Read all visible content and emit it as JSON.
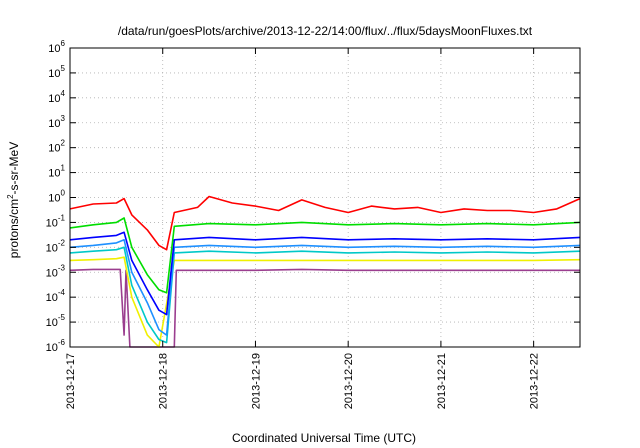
{
  "chart_data": {
    "type": "line",
    "title": "/data/run/goesPlots/archive/2013-12-22/14:00/flux/../flux/5daysMoonFluxes.txt",
    "xlabel": "Coordinated Universal Time (UTC)",
    "ylabel": "protons/cm²-s-sr-MeV",
    "ylabel_parts": {
      "before": "protons/cm",
      "sup": "2",
      "after": "-s-sr-MeV"
    },
    "y_scale": "log",
    "ylim": [
      1e-06,
      1000000.0
    ],
    "xlim": [
      "2013-12-17 00:00",
      "2013-12-22 12:00"
    ],
    "grid": true,
    "y_ticks": [
      {
        "value": 1e-06,
        "base": "10",
        "exp": "-6"
      },
      {
        "value": 1e-05,
        "base": "10",
        "exp": "-5"
      },
      {
        "value": 0.0001,
        "base": "10",
        "exp": "-4"
      },
      {
        "value": 0.001,
        "base": "10",
        "exp": "-3"
      },
      {
        "value": 0.01,
        "base": "10",
        "exp": "-2"
      },
      {
        "value": 0.1,
        "base": "10",
        "exp": "-1"
      },
      {
        "value": 1,
        "base": "10",
        "exp": "0"
      },
      {
        "value": 10.0,
        "base": "10",
        "exp": "1"
      },
      {
        "value": 100.0,
        "base": "10",
        "exp": "2"
      },
      {
        "value": 1000.0,
        "base": "10",
        "exp": "3"
      },
      {
        "value": 10000.0,
        "base": "10",
        "exp": "4"
      },
      {
        "value": 100000.0,
        "base": "10",
        "exp": "5"
      },
      {
        "value": 1000000.0,
        "base": "10",
        "exp": "6"
      }
    ],
    "x_ticks": [
      "2013-12-17",
      "2013-12-18",
      "2013-12-19",
      "2013-12-20",
      "2013-12-21",
      "2013-12-22"
    ],
    "series": [
      {
        "color": "#ff0000",
        "points": [
          [
            "2013-12-17 00:00",
            0.35
          ],
          [
            "2013-12-17 06:00",
            0.55
          ],
          [
            "2013-12-17 12:00",
            0.6
          ],
          [
            "2013-12-17 14:00",
            0.9
          ],
          [
            "2013-12-17 16:00",
            0.2
          ],
          [
            "2013-12-17 20:00",
            0.05
          ],
          [
            "2013-12-17 23:00",
            0.012
          ],
          [
            "2013-12-18 01:00",
            0.008
          ],
          [
            "2013-12-18 03:00",
            0.25
          ],
          [
            "2013-12-18 09:00",
            0.4
          ],
          [
            "2013-12-18 12:00",
            1.1
          ],
          [
            "2013-12-18 18:00",
            0.6
          ],
          [
            "2013-12-19 00:00",
            0.45
          ],
          [
            "2013-12-19 06:00",
            0.3
          ],
          [
            "2013-12-19 12:00",
            0.8
          ],
          [
            "2013-12-19 18:00",
            0.4
          ],
          [
            "2013-12-20 00:00",
            0.25
          ],
          [
            "2013-12-20 06:00",
            0.45
          ],
          [
            "2013-12-20 12:00",
            0.35
          ],
          [
            "2013-12-20 18:00",
            0.4
          ],
          [
            "2013-12-21 00:00",
            0.25
          ],
          [
            "2013-12-21 06:00",
            0.35
          ],
          [
            "2013-12-21 12:00",
            0.3
          ],
          [
            "2013-12-21 18:00",
            0.3
          ],
          [
            "2013-12-22 00:00",
            0.25
          ],
          [
            "2013-12-22 06:00",
            0.35
          ],
          [
            "2013-12-22 12:00",
            0.9
          ]
        ]
      },
      {
        "color": "#00dd00",
        "points": [
          [
            "2013-12-17 00:00",
            0.06
          ],
          [
            "2013-12-17 06:00",
            0.08
          ],
          [
            "2013-12-17 12:00",
            0.1
          ],
          [
            "2013-12-17 14:00",
            0.15
          ],
          [
            "2013-12-17 16:00",
            0.01
          ],
          [
            "2013-12-17 20:00",
            0.0008
          ],
          [
            "2013-12-17 23:00",
            0.0002
          ],
          [
            "2013-12-18 01:00",
            0.00015
          ],
          [
            "2013-12-18 03:00",
            0.07
          ],
          [
            "2013-12-18 12:00",
            0.09
          ],
          [
            "2013-12-19 00:00",
            0.08
          ],
          [
            "2013-12-19 12:00",
            0.1
          ],
          [
            "2013-12-20 00:00",
            0.08
          ],
          [
            "2013-12-20 12:00",
            0.09
          ],
          [
            "2013-12-21 00:00",
            0.08
          ],
          [
            "2013-12-21 12:00",
            0.09
          ],
          [
            "2013-12-22 00:00",
            0.08
          ],
          [
            "2013-12-22 12:00",
            0.1
          ]
        ]
      },
      {
        "color": "#0000ff",
        "points": [
          [
            "2013-12-17 00:00",
            0.02
          ],
          [
            "2013-12-17 06:00",
            0.025
          ],
          [
            "2013-12-17 12:00",
            0.03
          ],
          [
            "2013-12-17 14:00",
            0.04
          ],
          [
            "2013-12-17 16:00",
            0.003
          ],
          [
            "2013-12-17 20:00",
            0.0002
          ],
          [
            "2013-12-17 23:00",
            3e-05
          ],
          [
            "2013-12-18 01:00",
            2e-05
          ],
          [
            "2013-12-18 03:00",
            0.02
          ],
          [
            "2013-12-18 12:00",
            0.025
          ],
          [
            "2013-12-19 00:00",
            0.02
          ],
          [
            "2013-12-19 12:00",
            0.025
          ],
          [
            "2013-12-20 00:00",
            0.02
          ],
          [
            "2013-12-20 12:00",
            0.022
          ],
          [
            "2013-12-21 00:00",
            0.02
          ],
          [
            "2013-12-21 12:00",
            0.022
          ],
          [
            "2013-12-22 00:00",
            0.02
          ],
          [
            "2013-12-22 12:00",
            0.025
          ]
        ]
      },
      {
        "color": "#1e90ff",
        "points": [
          [
            "2013-12-17 00:00",
            0.01
          ],
          [
            "2013-12-17 06:00",
            0.012
          ],
          [
            "2013-12-17 12:00",
            0.015
          ],
          [
            "2013-12-17 14:00",
            0.02
          ],
          [
            "2013-12-17 16:00",
            0.001
          ],
          [
            "2013-12-17 20:00",
            6e-05
          ],
          [
            "2013-12-17 23:00",
            5e-06
          ],
          [
            "2013-12-18 01:00",
            3e-06
          ],
          [
            "2013-12-18 03:00",
            0.01
          ],
          [
            "2013-12-18 12:00",
            0.012
          ],
          [
            "2013-12-19 00:00",
            0.01
          ],
          [
            "2013-12-19 12:00",
            0.012
          ],
          [
            "2013-12-20 00:00",
            0.01
          ],
          [
            "2013-12-20 12:00",
            0.011
          ],
          [
            "2013-12-21 00:00",
            0.01
          ],
          [
            "2013-12-21 12:00",
            0.011
          ],
          [
            "2013-12-22 00:00",
            0.01
          ],
          [
            "2013-12-22 12:00",
            0.012
          ]
        ]
      },
      {
        "color": "#00c8c8",
        "points": [
          [
            "2013-12-17 00:00",
            0.006
          ],
          [
            "2013-12-17 06:00",
            0.007
          ],
          [
            "2013-12-17 12:00",
            0.008
          ],
          [
            "2013-12-17 14:00",
            0.01
          ],
          [
            "2013-12-17 16:00",
            0.0003
          ],
          [
            "2013-12-17 20:00",
            1e-05
          ],
          [
            "2013-12-17 23:00",
            2e-06
          ],
          [
            "2013-12-18 01:00",
            1.5e-06
          ],
          [
            "2013-12-18 03:00",
            0.006
          ],
          [
            "2013-12-18 12:00",
            0.007
          ],
          [
            "2013-12-19 00:00",
            0.006
          ],
          [
            "2013-12-19 12:00",
            0.007
          ],
          [
            "2013-12-20 00:00",
            0.006
          ],
          [
            "2013-12-20 12:00",
            0.0065
          ],
          [
            "2013-12-21 00:00",
            0.006
          ],
          [
            "2013-12-21 12:00",
            0.0065
          ],
          [
            "2013-12-22 00:00",
            0.006
          ],
          [
            "2013-12-22 12:00",
            0.007
          ]
        ]
      },
      {
        "color": "#f0f000",
        "points": [
          [
            "2013-12-17 00:00",
            0.003
          ],
          [
            "2013-12-17 06:00",
            0.0032
          ],
          [
            "2013-12-17 12:00",
            0.0035
          ],
          [
            "2013-12-17 14:00",
            0.004
          ],
          [
            "2013-12-17 16:00",
            0.0001
          ],
          [
            "2013-12-17 20:00",
            3e-06
          ],
          [
            "2013-12-17 23:00",
            1e-06
          ],
          [
            "2013-12-18 03:00",
            0.003
          ],
          [
            "2013-12-18 12:00",
            0.003
          ],
          [
            "2013-12-19 00:00",
            0.003
          ],
          [
            "2013-12-19 12:00",
            0.003
          ],
          [
            "2013-12-20 00:00",
            0.003
          ],
          [
            "2013-12-20 12:00",
            0.003
          ],
          [
            "2013-12-21 00:00",
            0.003
          ],
          [
            "2013-12-21 12:00",
            0.003
          ],
          [
            "2013-12-22 00:00",
            0.003
          ],
          [
            "2013-12-22 12:00",
            0.0032
          ]
        ]
      },
      {
        "color": "#9b3e8f",
        "points": [
          [
            "2013-12-17 00:00",
            0.0012
          ],
          [
            "2013-12-17 06:00",
            0.0013
          ],
          [
            "2013-12-17 12:00",
            0.0013
          ],
          [
            "2013-12-17 13:00",
            0.0013
          ],
          [
            "2013-12-17 14:00",
            3e-06
          ],
          [
            "2013-12-17 14:30",
            0.0012
          ],
          [
            "2013-12-17 15:30",
            1e-06
          ],
          [
            "2013-12-18 03:00",
            1e-06
          ],
          [
            "2013-12-18 03:30",
            0.0012
          ],
          [
            "2013-12-18 12:00",
            0.0012
          ],
          [
            "2013-12-19 00:00",
            0.0012
          ],
          [
            "2013-12-19 12:00",
            0.0013
          ],
          [
            "2013-12-20 00:00",
            0.0012
          ],
          [
            "2013-12-20 12:00",
            0.0012
          ],
          [
            "2013-12-21 00:00",
            0.0012
          ],
          [
            "2013-12-21 12:00",
            0.0012
          ],
          [
            "2013-12-22 00:00",
            0.0012
          ],
          [
            "2013-12-22 12:00",
            0.0012
          ]
        ]
      }
    ]
  }
}
